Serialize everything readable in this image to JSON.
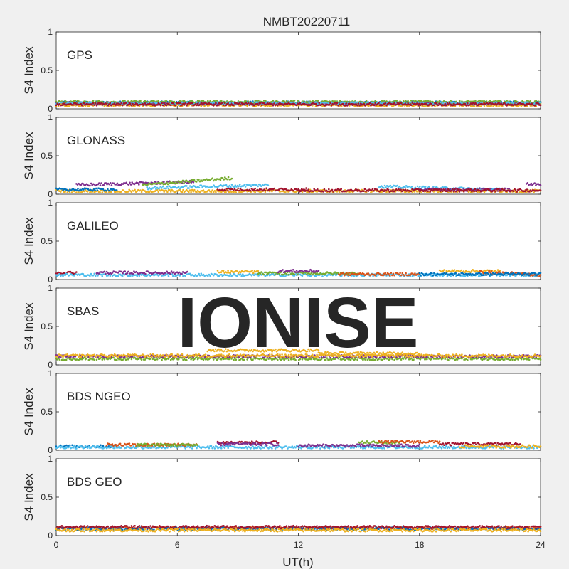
{
  "chart_data": {
    "type": "scatter",
    "title": "NMBT20220711",
    "xlabel": "UT(h)",
    "ylabel": "S4 Index",
    "xlim": [
      0,
      24
    ],
    "ylim": [
      0,
      1
    ],
    "x_ticks": [
      0,
      6,
      12,
      18,
      24
    ],
    "y_ticks": [
      0,
      0.5,
      1
    ],
    "watermark": "IONISE",
    "series_colors": [
      "#0072bd",
      "#d95319",
      "#edb120",
      "#7e2f8e",
      "#77ac30",
      "#4dbeee",
      "#a2142f"
    ],
    "panels": [
      {
        "label": "GPS",
        "baseline_range": [
          0.03,
          0.12
        ],
        "tracks": [
          {
            "color": "#0072bd",
            "start": 0,
            "end": 24,
            "level": 0.08
          },
          {
            "color": "#d95319",
            "start": 0,
            "end": 24,
            "level": 0.06
          },
          {
            "color": "#edb120",
            "start": 0,
            "end": 24,
            "level": 0.05
          },
          {
            "color": "#7e2f8e",
            "start": 0,
            "end": 24,
            "level": 0.07
          },
          {
            "color": "#77ac30",
            "start": 0,
            "end": 24,
            "level": 0.09
          },
          {
            "color": "#4dbeee",
            "start": 0,
            "end": 24,
            "level": 0.07
          },
          {
            "color": "#a2142f",
            "start": 0,
            "end": 24,
            "level": 0.06
          }
        ]
      },
      {
        "label": "GLONASS",
        "baseline_range": [
          0.02,
          0.2
        ],
        "tracks": [
          {
            "color": "#edb120",
            "start": 0,
            "end": 24,
            "level": 0.04
          },
          {
            "color": "#0072bd",
            "start": 0,
            "end": 3,
            "level": 0.06
          },
          {
            "color": "#7e2f8e",
            "start": 1,
            "end": 6.8,
            "level": 0.12,
            "rise_to": 0.16
          },
          {
            "color": "#77ac30",
            "start": 4.3,
            "end": 8.7,
            "level": 0.12,
            "rise_to": 0.21
          },
          {
            "color": "#4dbeee",
            "start": 4.5,
            "end": 10.5,
            "level": 0.08,
            "rise_to": 0.12
          },
          {
            "color": "#a2142f",
            "start": 8,
            "end": 12.5,
            "level": 0.06
          },
          {
            "color": "#4dbeee",
            "start": 16,
            "end": 22,
            "level": 0.1,
            "rise_to": 0.06
          },
          {
            "color": "#7e2f8e",
            "start": 18,
            "end": 22.5,
            "level": 0.06
          },
          {
            "color": "#a2142f",
            "start": 12,
            "end": 24,
            "level": 0.05
          },
          {
            "color": "#7e2f8e",
            "start": 23.3,
            "end": 24,
            "level": 0.13
          }
        ]
      },
      {
        "label": "GALILEO",
        "baseline_range": [
          0.04,
          0.17
        ],
        "tracks": [
          {
            "color": "#a2142f",
            "start": 0,
            "end": 1,
            "level": 0.09
          },
          {
            "color": "#4dbeee",
            "start": 0,
            "end": 24,
            "level": 0.06
          },
          {
            "color": "#7e2f8e",
            "start": 2,
            "end": 6.5,
            "level": 0.09
          },
          {
            "color": "#edb120",
            "start": 8,
            "end": 10,
            "level": 0.1
          },
          {
            "color": "#77ac30",
            "start": 10,
            "end": 15,
            "level": 0.08
          },
          {
            "color": "#7e2f8e",
            "start": 11,
            "end": 13,
            "level": 0.11
          },
          {
            "color": "#d95319",
            "start": 14,
            "end": 18,
            "level": 0.07
          },
          {
            "color": "#edb120",
            "start": 19,
            "end": 22,
            "level": 0.11
          },
          {
            "color": "#d95319",
            "start": 21,
            "end": 24,
            "level": 0.1,
            "rise_to": 0.06
          },
          {
            "color": "#0072bd",
            "start": 18,
            "end": 24,
            "level": 0.07
          }
        ]
      },
      {
        "label": "SBAS",
        "baseline_range": [
          0.07,
          0.28
        ],
        "tracks": [
          {
            "color": "#77ac30",
            "start": 0,
            "end": 24,
            "level": 0.08
          },
          {
            "color": "#7e2f8e",
            "start": 0,
            "end": 24,
            "level": 0.11
          },
          {
            "color": "#edb120",
            "start": 0,
            "end": 24,
            "level": 0.12
          },
          {
            "color": "#edb120",
            "start": 7.5,
            "end": 13,
            "level": 0.19
          },
          {
            "color": "#edb120",
            "start": 13,
            "end": 18,
            "level": 0.15
          }
        ]
      },
      {
        "label": "BDS NGEO",
        "baseline_range": [
          0.03,
          0.26
        ],
        "tracks": [
          {
            "color": "#0072bd",
            "start": 0,
            "end": 3,
            "level": 0.05
          },
          {
            "color": "#4dbeee",
            "start": 0,
            "end": 24,
            "level": 0.04
          },
          {
            "color": "#d95319",
            "start": 2.5,
            "end": 7,
            "level": 0.07
          },
          {
            "color": "#77ac30",
            "start": 4,
            "end": 7,
            "level": 0.07
          },
          {
            "color": "#a2142f",
            "start": 8,
            "end": 11,
            "level": 0.1
          },
          {
            "color": "#7e2f8e",
            "start": 8,
            "end": 11,
            "level": 0.08
          },
          {
            "color": "#77ac30",
            "start": 15,
            "end": 17,
            "level": 0.1
          },
          {
            "color": "#7e2f8e",
            "start": 12,
            "end": 18,
            "level": 0.06
          },
          {
            "color": "#d95319",
            "start": 16,
            "end": 19,
            "level": 0.11
          },
          {
            "color": "#a2142f",
            "start": 19,
            "end": 23,
            "level": 0.08
          },
          {
            "color": "#edb120",
            "start": 20,
            "end": 24,
            "level": 0.05
          }
        ]
      },
      {
        "label": "BDS GEO",
        "baseline_range": [
          0.05,
          0.2
        ],
        "tracks": [
          {
            "color": "#d95319",
            "start": 0,
            "end": 24,
            "level": 0.1
          },
          {
            "color": "#0072bd",
            "start": 0,
            "end": 24,
            "level": 0.09
          },
          {
            "color": "#a2142f",
            "start": 0,
            "end": 24,
            "level": 0.11
          },
          {
            "color": "#edb120",
            "start": 0,
            "end": 24,
            "level": 0.07
          }
        ]
      }
    ]
  }
}
